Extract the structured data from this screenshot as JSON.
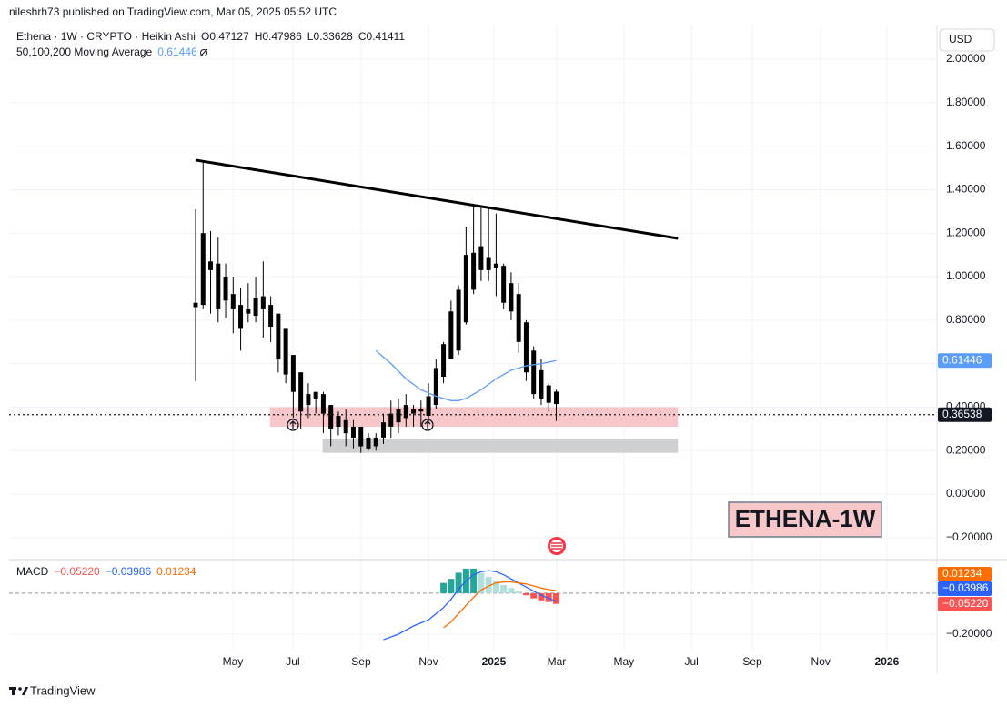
{
  "header": {
    "published": "nileshrh73 published on TradingView.com, Mar 05, 2025 05:52 UTC"
  },
  "footer": {
    "brand": "TradingView"
  },
  "chart_data": [
    {
      "type": "candlestick",
      "title": "Ethena · 1W · CRYPTO · Heikin Ashi",
      "currency": "USD",
      "ohlc_labels": [
        "O",
        "H",
        "L",
        "C"
      ],
      "candle_color": "#000000",
      "x": [
        0,
        1,
        2,
        3,
        4,
        5,
        6,
        7,
        8,
        9,
        10,
        11,
        12,
        13,
        14,
        15,
        16,
        17,
        18,
        19,
        20,
        21,
        22,
        23,
        24,
        25,
        26,
        27,
        28,
        29,
        30,
        31,
        32,
        33,
        34,
        35,
        36,
        37,
        38,
        39,
        40,
        41,
        42,
        43,
        44,
        45,
        46,
        47,
        48
      ],
      "open": [
        0.88,
        0.87,
        1.07,
        1.06,
        1.0,
        0.92,
        0.87,
        0.85,
        0.82,
        0.85,
        0.87,
        0.83,
        0.76,
        0.64,
        0.56,
        0.46,
        0.44,
        0.46,
        0.41,
        0.36,
        0.34,
        0.31,
        0.31,
        0.26,
        0.22,
        0.26,
        0.31,
        0.33,
        0.35,
        0.37,
        0.38,
        0.36,
        0.41,
        0.54,
        0.62,
        0.66,
        0.79,
        0.94,
        1.03,
        1.09,
        1.06,
        1.05,
        0.97,
        0.92,
        0.79,
        0.66,
        0.57,
        0.5,
        0.47127
      ],
      "high": [
        1.31,
        1.53,
        1.21,
        1.18,
        1.06,
        1.0,
        0.95,
        0.97,
        1.0,
        1.07,
        0.91,
        0.83,
        0.76,
        0.64,
        0.56,
        0.51,
        0.47,
        0.47,
        0.41,
        0.38,
        0.39,
        0.34,
        0.31,
        0.28,
        0.28,
        0.37,
        0.43,
        0.44,
        0.46,
        0.41,
        0.43,
        0.51,
        0.62,
        0.7,
        0.89,
        0.96,
        1.23,
        1.32,
        1.32,
        1.32,
        1.29,
        1.06,
        1.02,
        0.97,
        0.8,
        0.68,
        0.62,
        0.51,
        0.47986
      ],
      "low": [
        0.52,
        0.85,
        0.83,
        0.79,
        0.81,
        0.74,
        0.66,
        0.79,
        0.79,
        0.72,
        0.7,
        0.56,
        0.51,
        0.35,
        0.3,
        0.35,
        0.37,
        0.28,
        0.22,
        0.27,
        0.22,
        0.21,
        0.19,
        0.2,
        0.2,
        0.23,
        0.26,
        0.28,
        0.31,
        0.31,
        0.31,
        0.33,
        0.39,
        0.51,
        0.62,
        0.64,
        0.78,
        0.92,
        0.98,
        0.98,
        0.91,
        0.85,
        0.8,
        0.65,
        0.52,
        0.44,
        0.41,
        0.38,
        0.33628
      ],
      "close": [
        0.86,
        1.2,
        1.03,
        0.85,
        0.89,
        0.85,
        0.76,
        0.83,
        0.9,
        0.91,
        0.77,
        0.62,
        0.55,
        0.47,
        0.38,
        0.41,
        0.47,
        0.37,
        0.3,
        0.31,
        0.28,
        0.26,
        0.22,
        0.21,
        0.26,
        0.33,
        0.37,
        0.39,
        0.41,
        0.39,
        0.39,
        0.45,
        0.58,
        0.69,
        0.84,
        0.94,
        1.1,
        1.11,
        1.14,
        1.03,
        1.04,
        0.88,
        0.84,
        0.7,
        0.56,
        0.46,
        0.44,
        0.42,
        0.41411
      ],
      "ma": {
        "name": "50,100,200 Moving Average",
        "color": "#5b9cf6",
        "x": [
          24,
          26,
          28,
          30,
          32,
          34,
          35,
          36,
          38,
          40,
          42,
          44,
          46,
          48
        ],
        "values": [
          0.66,
          0.6,
          0.53,
          0.48,
          0.45,
          0.43,
          0.43,
          0.44,
          0.48,
          0.53,
          0.57,
          0.59,
          0.6,
          0.61446
        ]
      },
      "trendline": {
        "x": [
          0,
          64.2
        ],
        "values": [
          1.536,
          1.176
        ],
        "color": "#000000"
      },
      "zones": [
        {
          "x": [
            9.9,
            64.2
          ],
          "values": [
            0.4,
            0.31
          ],
          "color": "#f7c7c9"
        },
        {
          "x": [
            16.9,
            64.2
          ],
          "values": [
            0.255,
            0.19
          ],
          "color": "#cfd0d3"
        }
      ],
      "last_price": 0.36538,
      "annotation": "ETHENA-1W",
      "grid": true,
      "xlim": [
        -24.82,
        98.67
      ],
      "ylim": [
        -0.301,
        2.155
      ],
      "yticks": [
        {
          "value": 2,
          "label": "2.00000"
        },
        {
          "value": 1.8,
          "label": "1.80000"
        },
        {
          "value": 1.6,
          "label": "1.60000"
        },
        {
          "value": 1.4,
          "label": "1.40000"
        },
        {
          "value": 1.2,
          "label": "1.20000"
        },
        {
          "value": 1,
          "label": "1.00000"
        },
        {
          "value": 0.8,
          "label": "0.80000"
        },
        {
          "value": 0.6,
          "label": "0.60000"
        },
        {
          "value": 0.4,
          "label": "0.40000"
        },
        {
          "value": 0.2,
          "label": "0.20000"
        },
        {
          "value": 0,
          "label": "0.00000"
        },
        {
          "value": -0.2,
          "label": "−0.20000"
        }
      ]
    },
    {
      "type": "macd",
      "title": "MACD",
      "histogram": {
        "colors": [
          "#26a69a",
          "#b2dfdb",
          "#ffcdd2",
          "#ff5252"
        ],
        "x": [
          33,
          34,
          35,
          36,
          37,
          38,
          39,
          40,
          41,
          42,
          43,
          44,
          45,
          46,
          47,
          48
        ],
        "values": [
          0.05,
          0.07,
          0.1,
          0.12,
          0.12,
          0.1,
          0.08,
          0.06,
          0.04,
          0.025,
          0.01,
          -0.01,
          -0.025,
          -0.035,
          -0.043,
          -0.0522
        ],
        "last": {
          "value": -0.0522,
          "label": "−0.05220"
        }
      },
      "macd": {
        "color": "#2962ff",
        "x": [
          25,
          27,
          29,
          31,
          32,
          33,
          34,
          35,
          36,
          37,
          38,
          39,
          40,
          41,
          42,
          43,
          44,
          45,
          46,
          47,
          48
        ],
        "values": [
          -0.227,
          -0.2,
          -0.16,
          -0.13,
          -0.1,
          -0.07,
          -0.03,
          0.02,
          0.06,
          0.09,
          0.105,
          0.11,
          0.105,
          0.09,
          0.07,
          0.05,
          0.03,
          0.01,
          -0.01,
          -0.025,
          -0.03986
        ],
        "last": {
          "value": -0.03986,
          "label": "−0.03986"
        }
      },
      "signal": {
        "color": "#ff6d00",
        "x": [
          33,
          34,
          35,
          36,
          37,
          38,
          39,
          40,
          41,
          42,
          43,
          44,
          45,
          46,
          47,
          48
        ],
        "values": [
          -0.169,
          -0.14,
          -0.1,
          -0.06,
          -0.02,
          0.015,
          0.035,
          0.05,
          0.055,
          0.055,
          0.05,
          0.045,
          0.035,
          0.025,
          0.018,
          0.01234
        ],
        "last": {
          "value": 0.01234,
          "label": "0.01234"
        }
      },
      "grid": true,
      "xlim": [
        -24.82,
        98.67
      ],
      "ylim": [
        -0.28,
        0.164
      ],
      "yticks": [
        {
          "value": -0.2,
          "label": "−0.20000"
        }
      ],
      "xticks": [
        {
          "value": 4.96,
          "label": "May"
        },
        {
          "value": 12.95,
          "label": "Jul"
        },
        {
          "value": 22.03,
          "label": "Sep"
        },
        {
          "value": 31.0,
          "label": "Nov"
        },
        {
          "value": 39.7,
          "label": "2025"
        },
        {
          "value": 48.06,
          "label": "Mar"
        },
        {
          "value": 57.0,
          "label": "May"
        },
        {
          "value": 66.0,
          "label": "Jul"
        },
        {
          "value": 74.1,
          "label": "Sep"
        },
        {
          "value": 83.2,
          "label": "Nov"
        },
        {
          "value": 92.0,
          "label": "2026"
        }
      ]
    }
  ]
}
